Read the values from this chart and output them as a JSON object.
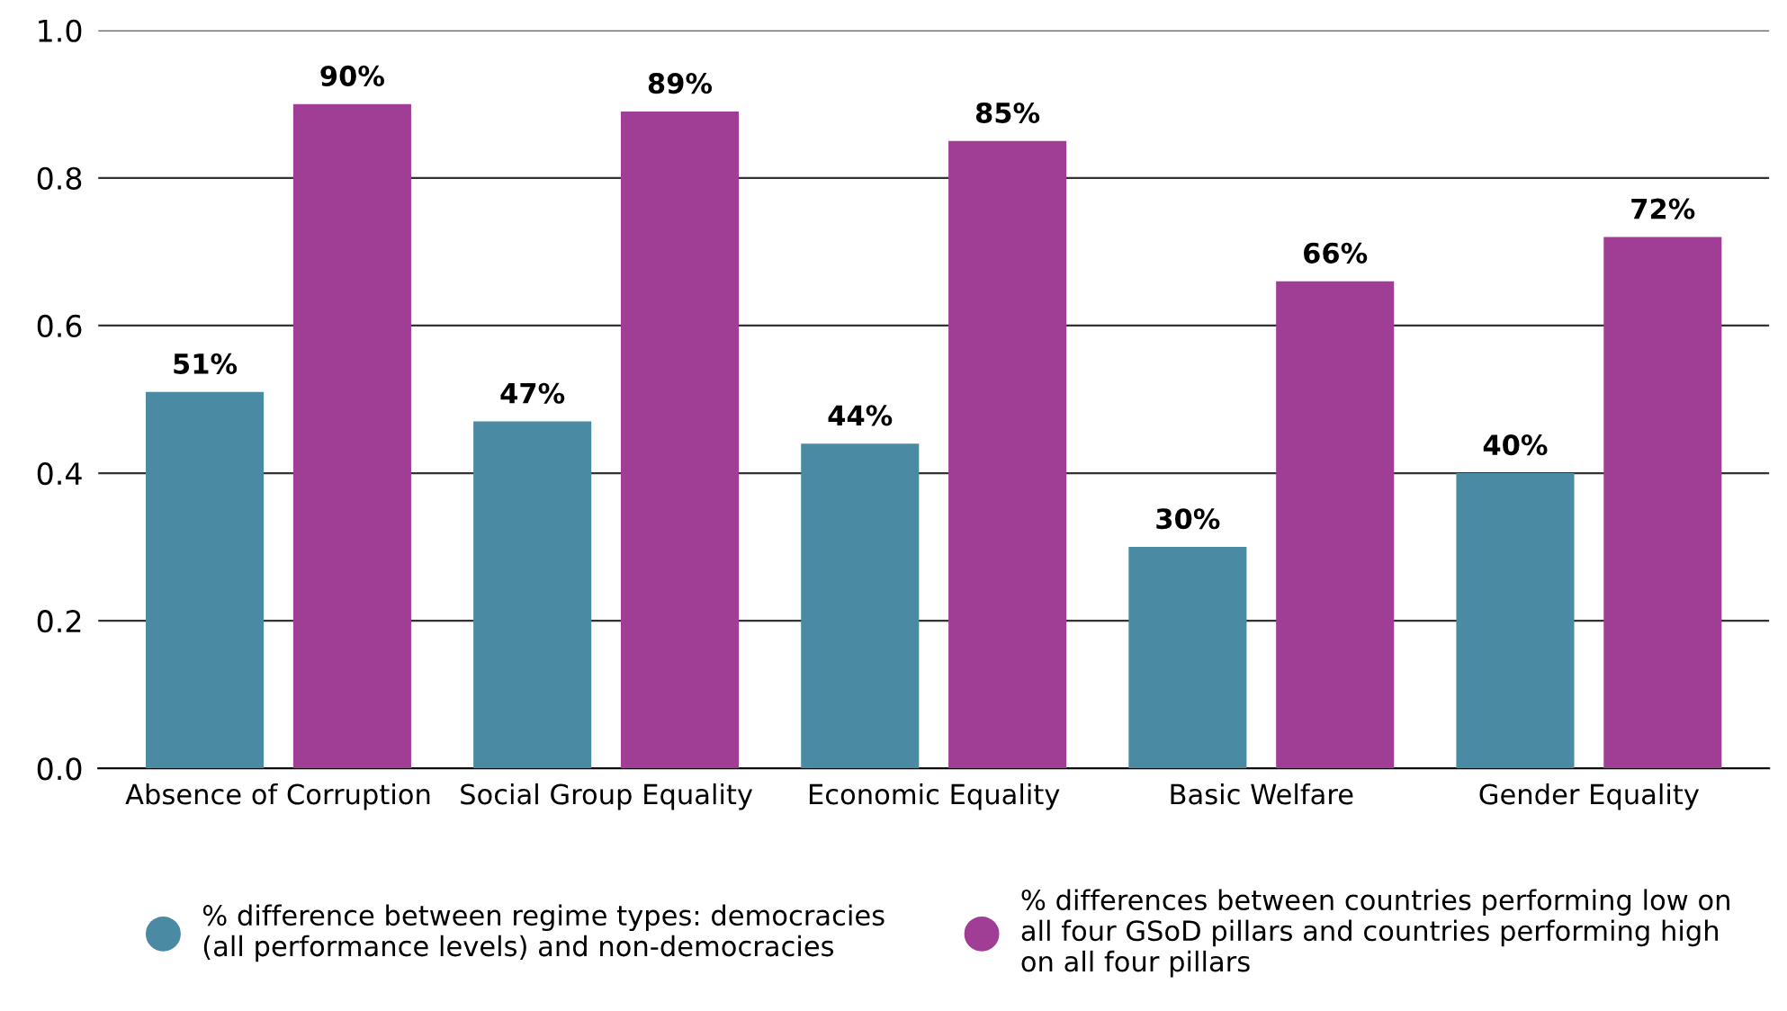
{
  "chart_data": {
    "type": "bar",
    "categories": [
      "Absence of Corruption",
      "Social Group Equality",
      "Economic Equality",
      "Basic Welfare",
      "Gender Equality"
    ],
    "series": [
      {
        "name": "% difference between regime types: democracies (all performance levels) and non-democracies",
        "color": "#4a8aa3",
        "values": [
          0.51,
          0.47,
          0.44,
          0.3,
          0.4
        ],
        "value_labels": [
          "51%",
          "47%",
          "44%",
          "30%",
          "40%"
        ]
      },
      {
        "name": "% differences between countries performing low on all four GSoD pillars and countries performing high on all four pillars",
        "color": "#a03e96",
        "values": [
          0.9,
          0.89,
          0.85,
          0.66,
          0.72
        ],
        "value_labels": [
          "90%",
          "89%",
          "85%",
          "66%",
          "72%"
        ]
      }
    ],
    "ylim": [
      0,
      1.0
    ],
    "yticks": [
      {
        "value": 0,
        "label": "0.0"
      },
      0.2,
      0.4,
      0.6,
      0.8,
      {
        "value": 1.0,
        "label": "1.0"
      }
    ],
    "grid": "y",
    "legend": "bottom",
    "marker": "circle"
  }
}
